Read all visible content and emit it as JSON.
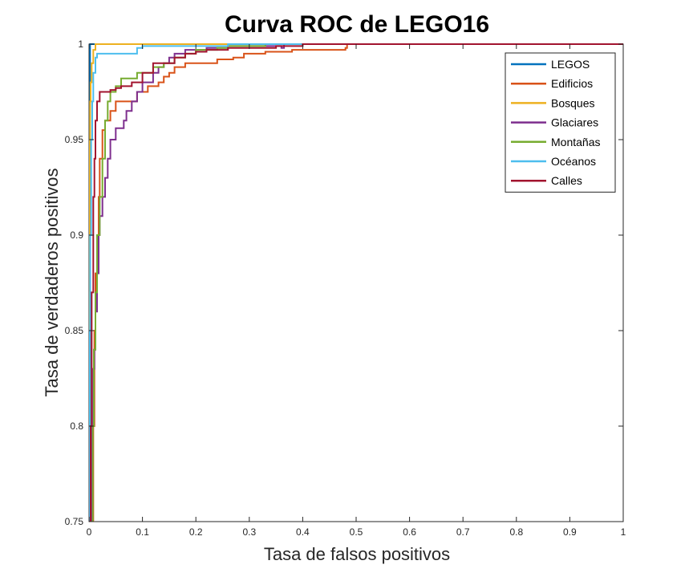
{
  "chart_data": {
    "type": "line",
    "title": "Curva ROC de LEGO16",
    "xlabel": "Tasa de falsos positivos",
    "ylabel": "Tasa de verdaderos positivos",
    "xlim": [
      0,
      1
    ],
    "ylim": [
      0.75,
      1
    ],
    "xticks": [
      "0",
      "0.1",
      "0.2",
      "0.3",
      "0.4",
      "0.5",
      "0.6",
      "0.7",
      "0.8",
      "0.9",
      "1"
    ],
    "yticks": [
      "0.75",
      "0.8",
      "0.85",
      "0.9",
      "0.95",
      "1"
    ],
    "grid": false,
    "legend_position": "top-right",
    "series": [
      {
        "name": "LEGOS",
        "color": "#0072BD",
        "x": [
          0,
          0.002,
          1
        ],
        "y": [
          0.75,
          1,
          1
        ]
      },
      {
        "name": "Edificios",
        "color": "#D95319",
        "x": [
          0.002,
          0.008,
          0.01,
          0.012,
          0.015,
          0.018,
          0.02,
          0.025,
          0.03,
          0.04,
          0.05,
          0.06,
          0.08,
          0.09,
          0.1,
          0.11,
          0.13,
          0.14,
          0.15,
          0.16,
          0.18,
          0.2,
          0.22,
          0.24,
          0.27,
          0.29,
          0.3,
          0.33,
          0.38,
          0.48,
          0.483,
          1
        ],
        "y": [
          0.75,
          0.8,
          0.85,
          0.88,
          0.9,
          0.92,
          0.94,
          0.955,
          0.96,
          0.965,
          0.97,
          0.97,
          0.97,
          0.975,
          0.975,
          0.978,
          0.98,
          0.983,
          0.985,
          0.988,
          0.99,
          0.99,
          0.99,
          0.992,
          0.993,
          0.995,
          0.995,
          0.996,
          0.997,
          0.998,
          1,
          1
        ]
      },
      {
        "name": "Bosques",
        "color": "#EDB120",
        "x": [
          0,
          0.001,
          0.002,
          0.003,
          0.005,
          0.008,
          0.012,
          0.09,
          1
        ],
        "y": [
          0.75,
          0.95,
          0.97,
          0.98,
          0.99,
          0.997,
          1,
          1,
          1
        ]
      },
      {
        "name": "Glaciares",
        "color": "#7E2F8E",
        "x": [
          0.003,
          0.006,
          0.008,
          0.01,
          0.012,
          0.015,
          0.018,
          0.02,
          0.025,
          0.03,
          0.035,
          0.04,
          0.05,
          0.06,
          0.065,
          0.07,
          0.08,
          0.09,
          0.1,
          0.12,
          0.13,
          0.14,
          0.15,
          0.16,
          0.18,
          0.2,
          0.22,
          0.24,
          0.26,
          0.3,
          0.34,
          0.36,
          0.365,
          1
        ],
        "y": [
          0.75,
          0.8,
          0.83,
          0.84,
          0.86,
          0.88,
          0.9,
          0.91,
          0.92,
          0.93,
          0.94,
          0.95,
          0.956,
          0.956,
          0.96,
          0.965,
          0.97,
          0.975,
          0.98,
          0.985,
          0.988,
          0.99,
          0.993,
          0.995,
          0.997,
          0.997,
          0.998,
          0.998,
          0.999,
          0.999,
          0.999,
          0.998,
          1,
          1
        ]
      },
      {
        "name": "Montañas",
        "color": "#77AC30",
        "x": [
          0.005,
          0.007,
          0.009,
          0.012,
          0.015,
          0.02,
          0.025,
          0.03,
          0.035,
          0.04,
          0.05,
          0.06,
          0.07,
          0.09,
          0.1,
          0.12,
          0.14,
          0.16,
          0.18,
          0.2,
          0.22,
          0.24,
          0.26,
          0.28,
          0.3,
          0.33,
          1
        ],
        "y": [
          0.75,
          0.8,
          0.84,
          0.87,
          0.9,
          0.92,
          0.94,
          0.96,
          0.97,
          0.975,
          0.978,
          0.982,
          0.982,
          0.985,
          0.985,
          0.988,
          0.99,
          0.993,
          0.995,
          0.997,
          0.997,
          0.998,
          0.999,
          0.999,
          0.999,
          1,
          1
        ]
      },
      {
        "name": "Océanos",
        "color": "#4DBEEE",
        "x": [
          0,
          0.001,
          0.002,
          0.004,
          0.006,
          0.008,
          0.012,
          0.015,
          0.02,
          0.08,
          0.09,
          0.1,
          0.25,
          0.26,
          1
        ],
        "y": [
          0.75,
          0.85,
          0.9,
          0.95,
          0.97,
          0.985,
          0.993,
          0.995,
          0.995,
          0.995,
          0.998,
          0.999,
          0.999,
          1,
          1
        ]
      },
      {
        "name": "Calles",
        "color": "#A2142F",
        "x": [
          0,
          0.003,
          0.005,
          0.008,
          0.01,
          0.012,
          0.015,
          0.02,
          0.025,
          0.03,
          0.04,
          0.05,
          0.06,
          0.08,
          0.1,
          0.12,
          0.14,
          0.16,
          0.18,
          0.2,
          0.22,
          0.24,
          0.26,
          0.3,
          0.35,
          0.4,
          1
        ],
        "y": [
          0.75,
          0.8,
          0.87,
          0.92,
          0.94,
          0.96,
          0.97,
          0.975,
          0.975,
          0.975,
          0.976,
          0.977,
          0.978,
          0.98,
          0.985,
          0.99,
          0.99,
          0.993,
          0.995,
          0.996,
          0.997,
          0.997,
          0.998,
          0.998,
          0.999,
          1,
          1
        ]
      }
    ]
  }
}
